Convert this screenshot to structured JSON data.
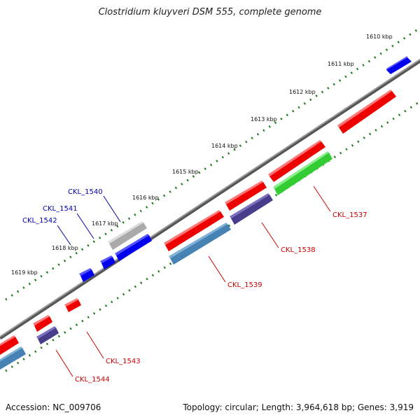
{
  "title": "Clostridium kluyveri DSM 555, complete genome",
  "accession": "Accession: NC_009706",
  "summary": "Topology: circular; Length: 3,964,618 bp; Genes: 3,919",
  "ticks": [
    "1610 kbp",
    "1611 kbp",
    "1612 kbp",
    "1613 kbp",
    "1614 kbp",
    "1615 kbp",
    "1616 kbp",
    "1617 kbp",
    "1618 kbp",
    "1619 kbp"
  ],
  "genes": [
    {
      "label": "CKL_1537",
      "color": "#cc0000"
    },
    {
      "label": "CKL_1538",
      "color": "#cc0000"
    },
    {
      "label": "CKL_1539",
      "color": "#cc0000"
    },
    {
      "label": "CKL_1540",
      "color": "#0000aa"
    },
    {
      "label": "CKL_1541",
      "color": "#0000aa"
    },
    {
      "label": "CKL_1542",
      "color": "#0000aa"
    },
    {
      "label": "CKL_1543",
      "color": "#cc0000"
    },
    {
      "label": "CKL_1544",
      "color": "#cc0000"
    }
  ],
  "colors": {
    "red": "#ff0000",
    "blue": "#0000ff",
    "grey": "#aaaaaa",
    "green": "#33cc33",
    "steelblue": "#4682b4",
    "slateblue": "#483d8b",
    "backbone": "#777777",
    "dots": "#1a7a1a"
  }
}
